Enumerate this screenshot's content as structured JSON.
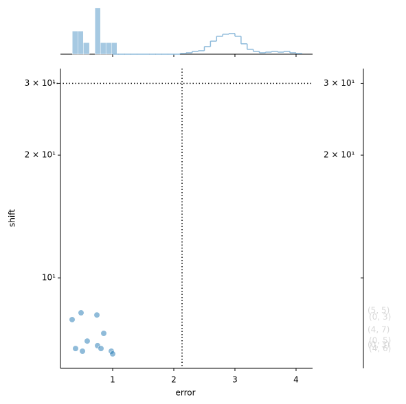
{
  "chart_data": {
    "type": "scatter",
    "x_label": "error",
    "y_label": "shift",
    "x": [
      0.337,
      0.483,
      0.742,
      0.584,
      0.854,
      0.393,
      0.506,
      0.753,
      0.809,
      0.978,
      1.0
    ],
    "values": [
      7.9,
      8.21,
      8.11,
      7.0,
      7.31,
      6.71,
      6.61,
      6.82,
      6.71,
      6.61,
      6.51
    ],
    "color": "#1f77b4",
    "xlim": [
      0.146,
      4.27
    ],
    "ylim": [
      6.0,
      32.6
    ],
    "log_y": true,
    "xticks": [
      1,
      2,
      3,
      4
    ],
    "yticks": [
      {
        "value": 10,
        "label": "10¹"
      },
      {
        "value": 20,
        "label": "2 × 10¹"
      },
      {
        "value": 30,
        "label": "3 × 10¹"
      }
    ],
    "vline": 2.135,
    "hline": 30,
    "marginal_ylim": [
      0,
      4.1
    ],
    "marginal_hist": {
      "color": "#a6c9e2",
      "bins": [
        0.34,
        0.43,
        0.52,
        0.62,
        0.71,
        0.8,
        0.89,
        0.98,
        1.07
      ],
      "counts": [
        2,
        2,
        1,
        0,
        4,
        1,
        1,
        1
      ]
    },
    "marginal_step": {
      "color": "#8fbbdb",
      "bins": [
        1.0,
        1.1,
        1.2,
        1.3,
        1.4,
        1.5,
        1.6,
        1.7,
        1.8,
        1.9,
        2.0,
        2.1,
        2.2,
        2.3,
        2.4,
        2.5,
        2.6,
        2.7,
        2.8,
        2.9,
        3.0,
        3.1,
        3.2,
        3.3,
        3.4,
        3.5,
        3.6,
        3.7,
        3.8,
        3.9,
        4.0,
        4.1
      ],
      "counts": [
        0,
        0,
        0,
        0,
        0,
        0,
        0,
        0,
        0,
        0,
        0,
        0.06,
        0.12,
        0.24,
        0.3,
        0.66,
        1.13,
        1.55,
        1.73,
        1.79,
        1.55,
        0.9,
        0.42,
        0.24,
        0.12,
        0.18,
        0.24,
        0.18,
        0.24,
        0.12,
        0.06
      ]
    },
    "annotations": [
      {
        "text": "(5, 5)",
        "y": 8.3
      },
      {
        "text": "(0, 3)",
        "y": 8.0
      },
      {
        "text": "(4, 7)",
        "y": 7.45
      },
      {
        "text": "(0, 5)",
        "y": 7.0
      },
      {
        "text": "(0, 3)",
        "y": 6.85
      },
      {
        "text": "(4, 6)",
        "y": 6.7
      }
    ]
  }
}
